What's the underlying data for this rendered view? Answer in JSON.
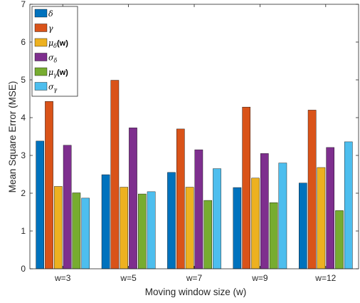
{
  "chart_data": {
    "type": "bar",
    "xlabel": "Moving window size (w)",
    "ylabel": "Mean Square Error (MSE)",
    "ylim": [
      0,
      7
    ],
    "yticks": [
      0,
      1,
      2,
      3,
      4,
      5,
      6,
      7
    ],
    "categories": [
      "w=3",
      "w=5",
      "w=7",
      "w=9",
      "w=12"
    ],
    "legend_position": "top-left",
    "series": [
      {
        "legend": {
          "sym": "δ",
          "sub": "",
          "suffix": ""
        },
        "color": "#0072BD",
        "values": [
          3.38,
          2.49,
          2.55,
          2.15,
          2.27
        ]
      },
      {
        "legend": {
          "sym": "γ",
          "sub": "",
          "suffix": ""
        },
        "color": "#D95319",
        "values": [
          4.43,
          4.99,
          3.7,
          4.28,
          4.2
        ]
      },
      {
        "legend": {
          "sym": "μ",
          "sub": "δ",
          "suffix": "(w)"
        },
        "color": "#EDB120",
        "values": [
          2.18,
          2.16,
          2.16,
          2.4,
          2.68
        ]
      },
      {
        "legend": {
          "sym": "σ",
          "sub": "δ",
          "suffix": ""
        },
        "color": "#7E2F8E",
        "values": [
          3.27,
          3.73,
          3.15,
          3.05,
          3.21
        ]
      },
      {
        "legend": {
          "sym": "μ",
          "sub": "γ",
          "suffix": "(w)"
        },
        "color": "#77AC30",
        "values": [
          2.01,
          1.98,
          1.81,
          1.75,
          1.54
        ]
      },
      {
        "legend": {
          "sym": "σ",
          "sub": "γ",
          "suffix": ""
        },
        "color": "#4DBEEE",
        "values": [
          1.87,
          2.04,
          2.65,
          2.8,
          3.36
        ]
      }
    ]
  }
}
